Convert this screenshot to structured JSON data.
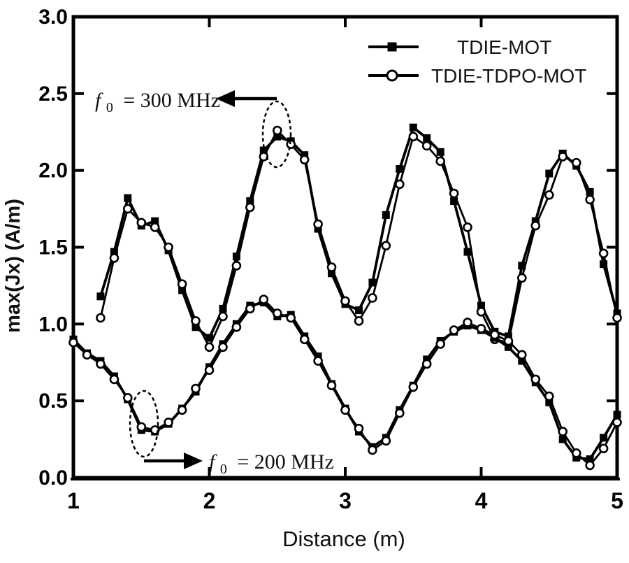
{
  "figure": {
    "xlabel": "Distance (m)",
    "ylabel": "max(Jx) (A/m)",
    "x_tick_labels": [
      "1",
      "2",
      "3",
      "4",
      "5"
    ],
    "y_tick_labels": [
      "0.0",
      "0.5",
      "1.0",
      "1.5",
      "2.0",
      "2.5",
      "3.0"
    ]
  },
  "legend": {
    "items": [
      {
        "label": "TDIE-MOT",
        "marker": "filled-square"
      },
      {
        "label": "TDIE-TDPO-MOT",
        "marker": "open-circle"
      }
    ]
  },
  "annotations": {
    "a300": {
      "f": "f",
      "sub": "0",
      "rest": "= 300 MHz",
      "target": "dashed ellipse around peak near x=2.5"
    },
    "a200": {
      "f": "f",
      "sub": "0",
      "rest": "= 200 MHz",
      "target": "dashed ellipse around valley near x=1.5"
    }
  },
  "chart_data": {
    "type": "line",
    "title": "",
    "xlabel": "Distance (m)",
    "ylabel": "max(Jx) (A/m)",
    "xlim": [
      1,
      5
    ],
    "ylim": [
      0,
      3
    ],
    "x_ticks": [
      1,
      2,
      3,
      4,
      5
    ],
    "y_ticks": [
      0.0,
      0.5,
      1.0,
      1.5,
      2.0,
      2.5,
      3.0
    ],
    "grid": false,
    "legend_position": "upper right",
    "colors": {
      "foreground": "#000000",
      "background": "#ffffff"
    },
    "series": [
      {
        "id": "tdie-mot-300",
        "name": "TDIE-MOT",
        "frequency": "f0 = 300 MHz",
        "marker": "filled-square",
        "x": [
          1.2,
          1.3,
          1.4,
          1.5,
          1.6,
          1.7,
          1.8,
          1.9,
          2.0,
          2.1,
          2.2,
          2.3,
          2.4,
          2.5,
          2.6,
          2.7,
          2.8,
          2.9,
          3.0,
          3.1,
          3.2,
          3.3,
          3.4,
          3.5,
          3.6,
          3.7,
          3.8,
          3.9,
          4.0,
          4.1,
          4.2,
          4.3,
          4.4,
          4.5,
          4.6,
          4.7,
          4.8,
          4.9,
          5.0
        ],
        "y": [
          1.18,
          1.47,
          1.82,
          1.64,
          1.67,
          1.48,
          1.22,
          0.98,
          0.91,
          1.1,
          1.44,
          1.8,
          2.13,
          2.22,
          2.19,
          2.1,
          1.62,
          1.33,
          1.13,
          1.09,
          1.27,
          1.71,
          2.01,
          2.28,
          2.21,
          2.12,
          1.8,
          1.47,
          1.12,
          0.95,
          0.92,
          1.38,
          1.67,
          1.98,
          2.11,
          2.03,
          1.86,
          1.39,
          1.07
        ]
      },
      {
        "id": "tdie-tdpo-mot-300",
        "name": "TDIE-TDPO-MOT",
        "frequency": "f0 = 300 MHz",
        "marker": "open-circle",
        "x": [
          1.2,
          1.3,
          1.4,
          1.5,
          1.6,
          1.7,
          1.8,
          1.9,
          2.0,
          2.1,
          2.2,
          2.3,
          2.4,
          2.5,
          2.6,
          2.7,
          2.8,
          2.9,
          3.0,
          3.1,
          3.2,
          3.3,
          3.4,
          3.5,
          3.6,
          3.7,
          3.8,
          3.9,
          4.0,
          4.1,
          4.2,
          4.3,
          4.4,
          4.5,
          4.6,
          4.7,
          4.8,
          4.9,
          5.0
        ],
        "y": [
          1.04,
          1.43,
          1.75,
          1.66,
          1.63,
          1.5,
          1.26,
          1.02,
          0.85,
          1.05,
          1.38,
          1.76,
          2.09,
          2.26,
          2.17,
          2.07,
          1.65,
          1.37,
          1.15,
          1.02,
          1.17,
          1.51,
          1.91,
          2.22,
          2.16,
          2.06,
          1.85,
          1.63,
          1.08,
          0.9,
          0.88,
          1.3,
          1.64,
          1.84,
          2.09,
          2.05,
          1.81,
          1.46,
          1.04
        ]
      },
      {
        "id": "tdie-mot-200",
        "name": "TDIE-MOT",
        "frequency": "f0 = 200 MHz",
        "marker": "filled-square",
        "x": [
          1.0,
          1.1,
          1.2,
          1.3,
          1.4,
          1.5,
          1.6,
          1.7,
          1.8,
          1.9,
          2.0,
          2.1,
          2.2,
          2.3,
          2.4,
          2.5,
          2.6,
          2.7,
          2.8,
          2.9,
          3.0,
          3.1,
          3.2,
          3.3,
          3.4,
          3.5,
          3.6,
          3.7,
          3.8,
          3.9,
          4.0,
          4.1,
          4.2,
          4.3,
          4.4,
          4.5,
          4.6,
          4.7,
          4.8,
          4.9,
          5.0
        ],
        "y": [
          0.9,
          0.81,
          0.76,
          0.66,
          0.51,
          0.31,
          0.3,
          0.35,
          0.45,
          0.56,
          0.72,
          0.87,
          1.0,
          1.12,
          1.14,
          1.05,
          1.06,
          0.92,
          0.79,
          0.61,
          0.45,
          0.3,
          0.2,
          0.26,
          0.44,
          0.6,
          0.77,
          0.89,
          0.95,
          0.99,
          0.96,
          0.91,
          0.85,
          0.76,
          0.62,
          0.49,
          0.25,
          0.13,
          0.12,
          0.26,
          0.41
        ]
      },
      {
        "id": "tdie-tdpo-mot-200",
        "name": "TDIE-TDPO-MOT",
        "frequency": "f0 = 200 MHz",
        "marker": "open-circle",
        "x": [
          1.0,
          1.1,
          1.2,
          1.3,
          1.4,
          1.5,
          1.6,
          1.7,
          1.8,
          1.9,
          2.0,
          2.1,
          2.2,
          2.3,
          2.4,
          2.5,
          2.6,
          2.7,
          2.8,
          2.9,
          3.0,
          3.1,
          3.2,
          3.3,
          3.4,
          3.5,
          3.6,
          3.7,
          3.8,
          3.9,
          4.0,
          4.1,
          4.2,
          4.3,
          4.4,
          4.5,
          4.6,
          4.7,
          4.8,
          4.9,
          5.0
        ],
        "y": [
          0.88,
          0.8,
          0.74,
          0.64,
          0.52,
          0.33,
          0.31,
          0.36,
          0.44,
          0.58,
          0.7,
          0.85,
          0.98,
          1.1,
          1.16,
          1.07,
          1.04,
          0.9,
          0.76,
          0.6,
          0.44,
          0.32,
          0.18,
          0.24,
          0.42,
          0.59,
          0.74,
          0.87,
          0.96,
          1.01,
          0.97,
          0.93,
          0.89,
          0.8,
          0.64,
          0.53,
          0.3,
          0.16,
          0.08,
          0.19,
          0.36
        ]
      }
    ]
  }
}
